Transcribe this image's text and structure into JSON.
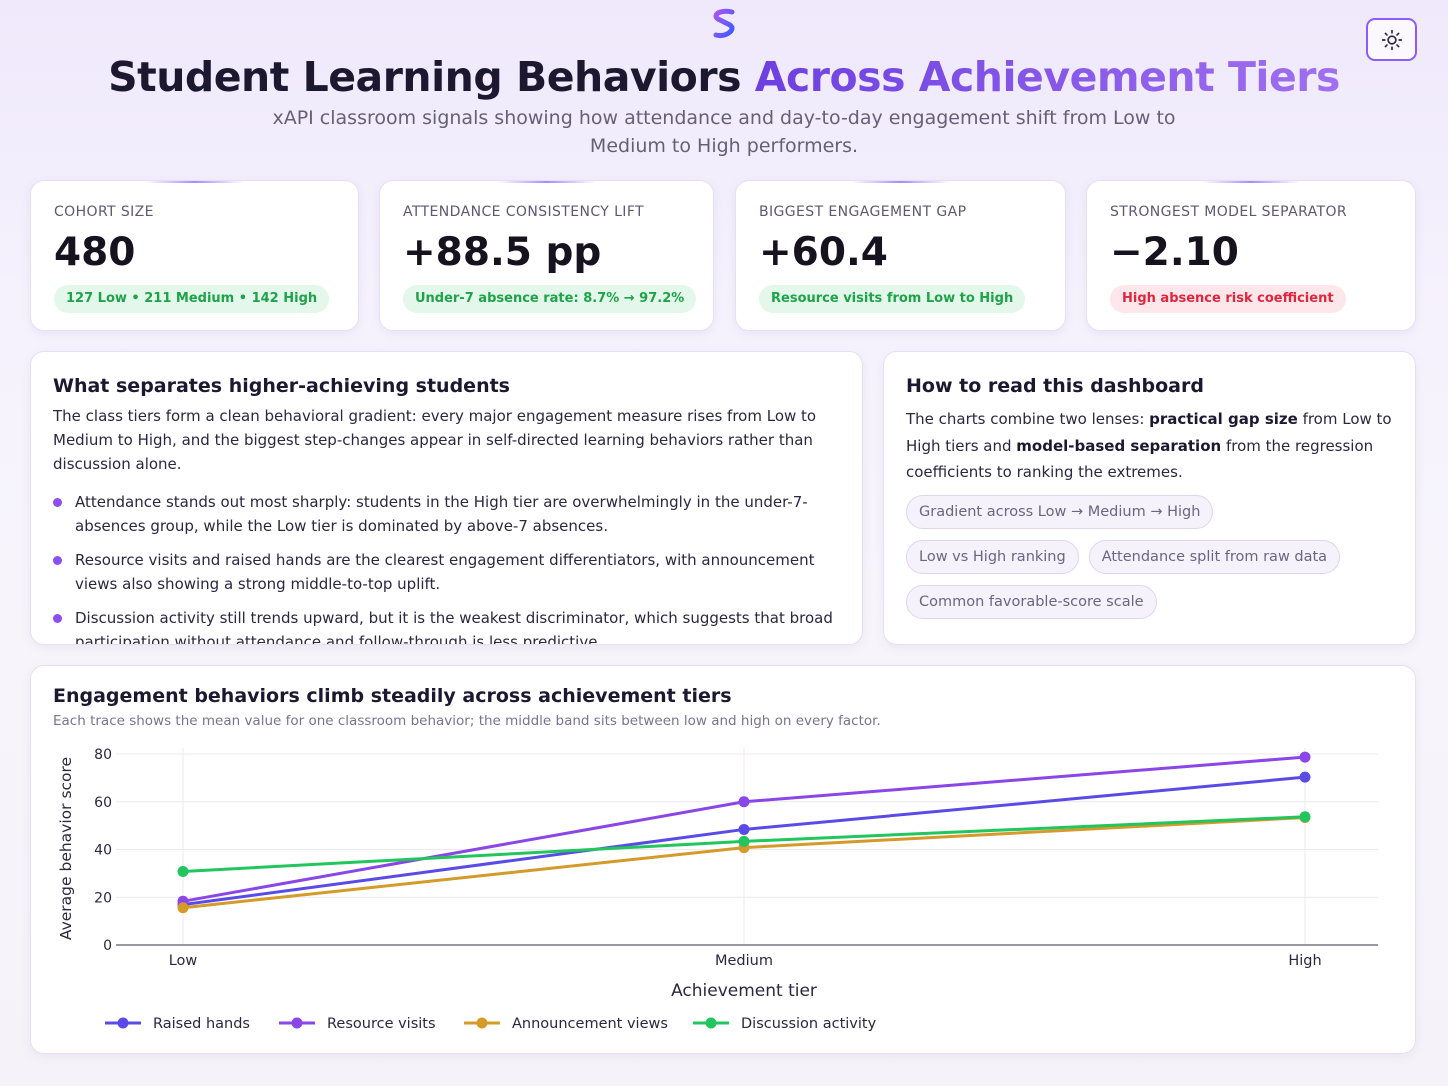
{
  "header": {
    "title_part1": "Student Learning Behaviors",
    "title_part2": "Across Achievement Tiers",
    "subtitle": "xAPI classroom signals showing how attendance and day-to-day engagement shift from Low to Medium to High performers.",
    "logo_icon": "brand-s-logo-icon",
    "theme_toggle_icon": "sun-icon"
  },
  "kpis": [
    {
      "label": "COHORT SIZE",
      "value": "480",
      "pill": "127 Low • 211 Medium • 142 High",
      "pill_tone": "green"
    },
    {
      "label": "ATTENDANCE CONSISTENCY LIFT",
      "value": "+88.5 pp",
      "pill": "Under-7 absence rate: 8.7% → 97.2%",
      "pill_tone": "green"
    },
    {
      "label": "BIGGEST ENGAGEMENT GAP",
      "value": "+60.4",
      "pill": "Resource visits from Low to High",
      "pill_tone": "green"
    },
    {
      "label": "STRONGEST MODEL SEPARATOR",
      "value": "−2.10",
      "pill": "High absence risk coefficient",
      "pill_tone": "red"
    }
  ],
  "insights": {
    "title": "What separates higher-achieving students",
    "intro": "The class tiers form a clean behavioral gradient: every major engagement measure rises from Low to Medium to High, and the biggest step-changes appear in self-directed learning behaviors rather than discussion alone.",
    "bullets": [
      "Attendance stands out most sharply: students in the High tier are overwhelmingly in the under-7-absences group, while the Low tier is dominated by above-7 absences.",
      "Resource visits and raised hands are the clearest engagement differentiators, with announcement views also showing a strong middle-to-top uplift.",
      "Discussion activity still trends upward, but it is the weakest discriminator, which suggests that broad participation without attendance and follow-through is less predictive."
    ]
  },
  "howto": {
    "title": "How to read this dashboard",
    "intro_a": "The charts combine two lenses: ",
    "intro_b": "practical gap size",
    "intro_c": " from Low to High tiers and ",
    "intro_d": "model-based separation",
    "intro_e": " from the regression coefficients to ranking the extremes.",
    "chips": [
      "Gradient across Low → Medium → High",
      "Low vs High ranking",
      "Attendance split from raw data",
      "Common favorable-score scale"
    ]
  },
  "chart_card": {
    "title": "Engagement behaviors climb steadily across achievement tiers",
    "subtitle": "Each trace shows the mean value for one classroom behavior; the middle band sits between low and high on every factor."
  },
  "chart_data": {
    "type": "line",
    "categories": [
      "Low",
      "Medium",
      "High"
    ],
    "xlabel": "Achievement tier",
    "ylabel": "Average behavior score",
    "ylim": [
      0,
      80
    ],
    "yticks": [
      0,
      20,
      40,
      60,
      80
    ],
    "grid": true,
    "legend_position": "bottom-left",
    "series": [
      {
        "name": "Raised hands",
        "values": [
          16.9,
          48.4,
          70.3
        ],
        "color": "#5b4be6"
      },
      {
        "name": "Resource visits",
        "values": [
          18.3,
          60.0,
          78.7
        ],
        "color": "#8a46e6"
      },
      {
        "name": "Announcement views",
        "values": [
          15.6,
          40.8,
          53.4
        ],
        "color": "#d49a2a"
      },
      {
        "name": "Discussion activity",
        "values": [
          30.8,
          43.4,
          53.7
        ],
        "color": "#22c55e"
      }
    ]
  }
}
